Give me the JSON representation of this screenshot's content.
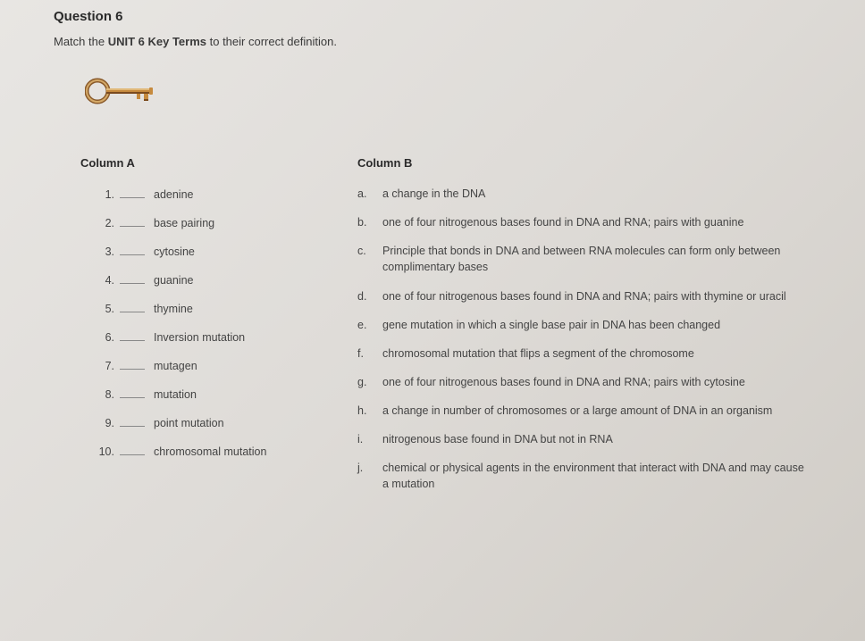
{
  "question": {
    "title": "Question 6",
    "instruction_prefix": "Match the ",
    "instruction_bold": "UNIT 6 Key Terms",
    "instruction_suffix": " to their correct definition."
  },
  "columnA": {
    "header": "Column A",
    "terms": [
      {
        "num": "1.",
        "label": "adenine"
      },
      {
        "num": "2.",
        "label": "base pairing"
      },
      {
        "num": "3.",
        "label": "cytosine"
      },
      {
        "num": "4.",
        "label": "guanine"
      },
      {
        "num": "5.",
        "label": "thymine"
      },
      {
        "num": "6.",
        "label": "Inversion mutation"
      },
      {
        "num": "7.",
        "label": "mutagen"
      },
      {
        "num": "8.",
        "label": "mutation"
      },
      {
        "num": "9.",
        "label": "point mutation"
      },
      {
        "num": "10.",
        "label": "chromosomal mutation"
      }
    ]
  },
  "columnB": {
    "header": "Column B",
    "defs": [
      {
        "letter": "a.",
        "text": "a change in the DNA"
      },
      {
        "letter": "b.",
        "text": "one of four nitrogenous bases found in DNA and RNA; pairs with guanine"
      },
      {
        "letter": "c.",
        "text": "Principle that bonds in DNA and between RNA molecules can form only between complimentary bases"
      },
      {
        "letter": "d.",
        "text": "one of four nitrogenous bases found in DNA and RNA; pairs with thymine or uracil"
      },
      {
        "letter": "e.",
        "text": "gene mutation in which a single base pair in DNA has been changed"
      },
      {
        "letter": "f.",
        "text": "chromosomal mutation that flips a segment of the chromosome"
      },
      {
        "letter": "g.",
        "text": "one of four nitrogenous bases found in DNA and RNA; pairs with cytosine"
      },
      {
        "letter": "h.",
        "text": "a change in number of chromosomes or a large amount of DNA in an organism"
      },
      {
        "letter": "i.",
        "text": "nitrogenous base found in DNA but not in RNA"
      },
      {
        "letter": "j.",
        "text": "chemical or physical agents in the environment that interact with DNA and may cause a mutation"
      }
    ]
  },
  "key_colors": {
    "ring_outer": "#8a5a2a",
    "ring_inner": "#d4a968",
    "shaft": "#c68a3e",
    "shaft_dark": "#7a4a1e"
  }
}
